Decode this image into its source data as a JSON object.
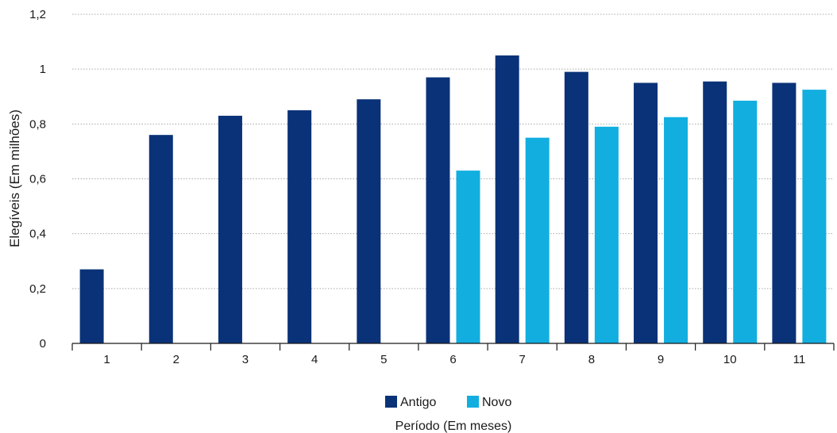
{
  "chart_data": {
    "type": "bar",
    "categories": [
      "1",
      "2",
      "3",
      "4",
      "5",
      "6",
      "7",
      "8",
      "9",
      "10",
      "11"
    ],
    "series": [
      {
        "name": "Antigo",
        "color": "#0a3278",
        "values": [
          0.27,
          0.76,
          0.83,
          0.85,
          0.89,
          0.97,
          1.05,
          0.99,
          0.95,
          0.955,
          0.95
        ]
      },
      {
        "name": "Novo",
        "color": "#12aee0",
        "values": [
          null,
          null,
          null,
          null,
          null,
          0.63,
          0.75,
          0.79,
          0.825,
          0.885,
          0.925
        ]
      }
    ],
    "ylim": [
      0,
      1.2
    ],
    "yticks": [
      "0",
      "0,2",
      "0,4",
      "0,6",
      "0,8",
      "1",
      "1,2"
    ],
    "ylabel": "Elegíveis (Em milhões)",
    "xlabel": "Período (Em meses)",
    "grid": true,
    "legend": "bottom-center"
  }
}
